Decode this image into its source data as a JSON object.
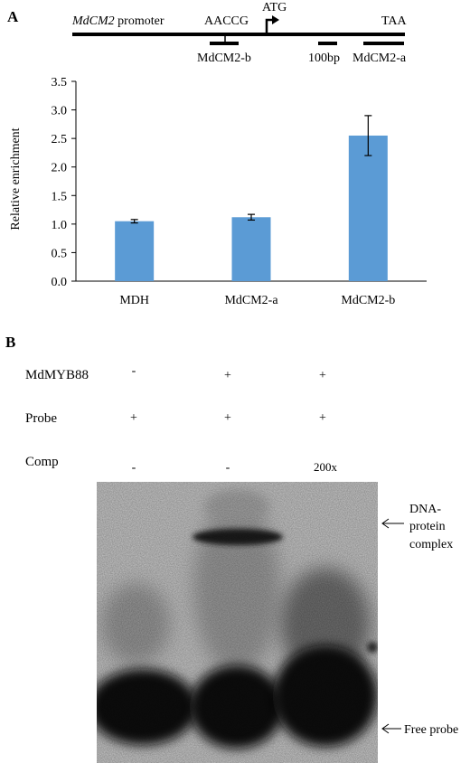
{
  "panel_a": {
    "label": "A",
    "gene_map": {
      "promoter_name": "MdCM2",
      "promoter_suffix": " promoter",
      "motif": "AACCG",
      "start_codon": "ATG",
      "stop_codon": "TAA",
      "fragment_b": "MdCM2-b",
      "scale_label": "100bp",
      "fragment_a": "MdCM2-a"
    }
  },
  "chart_data": {
    "type": "bar",
    "categories": [
      "MDH",
      "MdCM2-a",
      "MdCM2-b"
    ],
    "values": [
      1.05,
      1.12,
      2.55
    ],
    "errors": [
      0.03,
      0.05,
      0.35
    ],
    "ylabel": "Relative enrichment",
    "xlabel": "",
    "ylim": [
      0,
      3.5
    ],
    "yticks": [
      "0.0",
      "0.5",
      "1.0",
      "1.5",
      "2.0",
      "2.5",
      "3.0",
      "3.5"
    ],
    "grid": false,
    "bar_color": "#5b9bd5"
  },
  "panel_b": {
    "label": "B",
    "rows": [
      {
        "name": "MdMYB88",
        "lanes": [
          "-",
          "+",
          "+"
        ]
      },
      {
        "name": "Probe",
        "lanes": [
          "+",
          "+",
          "+"
        ]
      },
      {
        "name": "Comp",
        "lanes": [
          "-",
          "-",
          "200x"
        ]
      }
    ],
    "annotation_complex_line1": "DNA-",
    "annotation_complex_line2": "protein",
    "annotation_complex_line3": "complex",
    "annotation_free": "Free probe"
  }
}
